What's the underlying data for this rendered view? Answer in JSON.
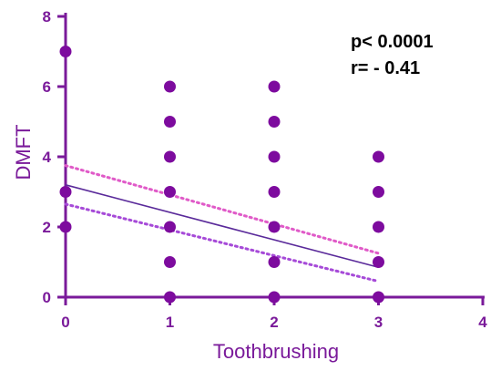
{
  "chart_data": {
    "type": "scatter",
    "title": "",
    "xlabel": "Toothbrushing",
    "ylabel": "DMFT",
    "xlim": [
      0,
      4
    ],
    "ylim": [
      0,
      8
    ],
    "xticks": [
      0,
      1,
      2,
      3,
      4
    ],
    "yticks": [
      0,
      2,
      4,
      6,
      8
    ],
    "grid": false,
    "points": [
      {
        "x": 0,
        "y": 7
      },
      {
        "x": 0,
        "y": 3
      },
      {
        "x": 0,
        "y": 2
      },
      {
        "x": 1,
        "y": 6
      },
      {
        "x": 1,
        "y": 5
      },
      {
        "x": 1,
        "y": 4
      },
      {
        "x": 1,
        "y": 3
      },
      {
        "x": 1,
        "y": 2
      },
      {
        "x": 1,
        "y": 1
      },
      {
        "x": 1,
        "y": 0
      },
      {
        "x": 2,
        "y": 6
      },
      {
        "x": 2,
        "y": 5
      },
      {
        "x": 2,
        "y": 4
      },
      {
        "x": 2,
        "y": 3
      },
      {
        "x": 2,
        "y": 2
      },
      {
        "x": 2,
        "y": 1
      },
      {
        "x": 2,
        "y": 0
      },
      {
        "x": 3,
        "y": 4
      },
      {
        "x": 3,
        "y": 3
      },
      {
        "x": 3,
        "y": 2
      },
      {
        "x": 3,
        "y": 1
      },
      {
        "x": 3,
        "y": 0
      }
    ],
    "regression": {
      "x": [
        0,
        3
      ],
      "y": [
        3.2,
        0.85
      ]
    },
    "ci_upper": {
      "x": [
        0,
        3
      ],
      "y": [
        3.75,
        1.25
      ]
    },
    "ci_lower": {
      "x": [
        0,
        3
      ],
      "y": [
        2.65,
        0.45
      ]
    },
    "annotations": [
      "p< 0.0001",
      "r= - 0.41"
    ],
    "colors": {
      "axis": "#7a1a9a",
      "point": "#7d0b9e",
      "line": "#5a2a9a",
      "ci_upper": "#e05ac8",
      "ci_lower": "#a64ad8",
      "annotation": "#000000"
    }
  }
}
